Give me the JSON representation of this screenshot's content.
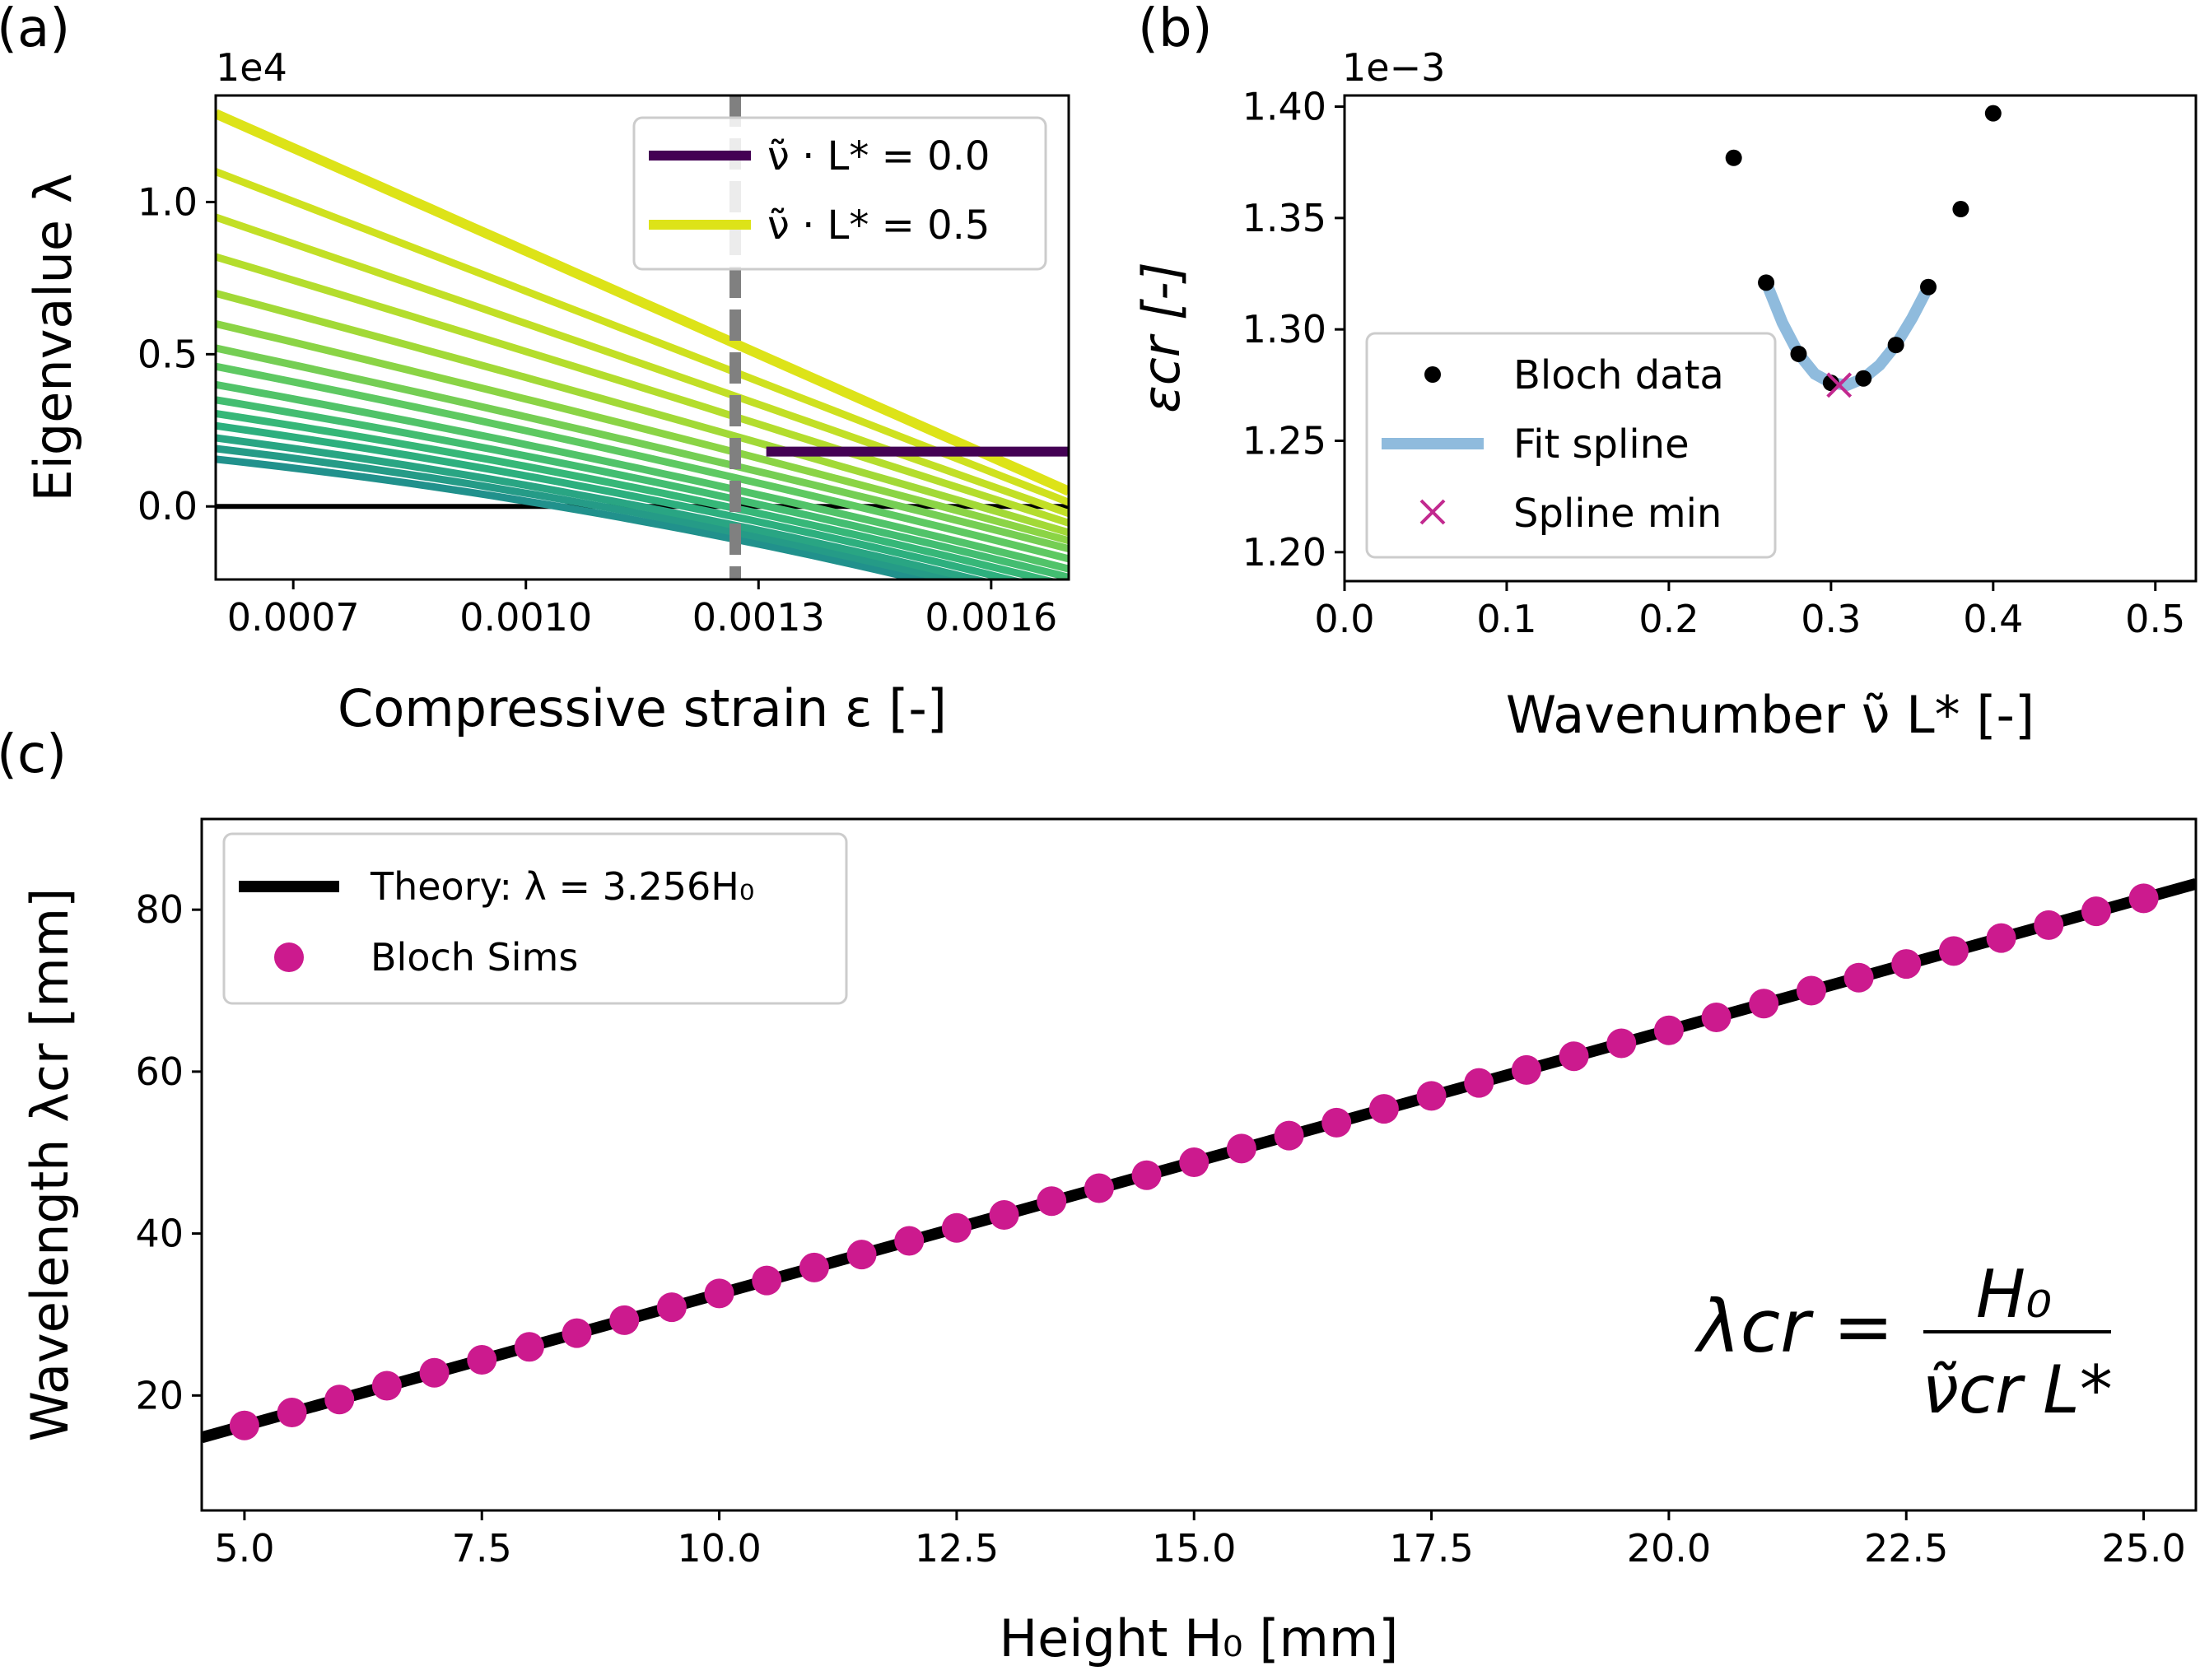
{
  "panels": {
    "a": {
      "letter": "(a)",
      "offset_text": "1e4",
      "xlabel": "Compressive strain ε [-]",
      "ylabel": "Eigenvalue λ",
      "xticks": [
        "0.0007",
        "0.0010",
        "0.0013",
        "0.0016"
      ],
      "yticks": [
        "0.0",
        "0.5",
        "1.0"
      ],
      "legend": [
        "ν̃ · L* = 0.0",
        "ν̃ · L* = 0.5"
      ]
    },
    "b": {
      "letter": "(b)",
      "offset_text": "1e−3",
      "xlabel": "Wavenumber ν̃ L* [-]",
      "ylabel": "εcr [-]",
      "xticks": [
        "0.0",
        "0.1",
        "0.2",
        "0.3",
        "0.4",
        "0.5"
      ],
      "yticks": [
        "1.20",
        "1.25",
        "1.30",
        "1.35",
        "1.40"
      ],
      "legend": [
        "Bloch data",
        "Fit spline",
        "Spline min"
      ]
    },
    "c": {
      "letter": "(c)",
      "xlabel": "Height H₀ [mm]",
      "ylabel": "Wavelength λcr [mm]",
      "xticks": [
        "5.0",
        "7.5",
        "10.0",
        "12.5",
        "15.0",
        "17.5",
        "20.0",
        "22.5",
        "25.0"
      ],
      "yticks": [
        "20",
        "40",
        "60",
        "80"
      ],
      "legend": [
        "Theory: λ = 3.256H₀",
        "Bloch Sims"
      ],
      "formula": {
        "lhs": "λcr =",
        "numerator": "H₀",
        "denominator": "ν̃cr L*"
      }
    }
  },
  "colors": {
    "dark_line": "#440154",
    "light_line": "#dde318",
    "dashed_line": "#808080",
    "spline": "#8fbbdd",
    "marker_pink": "#cc1a8e",
    "spline_min": "#c2298f",
    "black": "#000000"
  },
  "chart_data": [
    {
      "type": "line",
      "panel": "a",
      "xlabel": "Compressive strain ε [-]",
      "ylabel": "Eigenvalue λ",
      "y_scale_factor": 10000,
      "xlim": [
        0.0006,
        0.0017
      ],
      "ylim": [
        -0.24,
        1.35
      ],
      "vline_x": 0.00127,
      "hline_y": 0.0,
      "dark_series": {
        "name": "ν̃ · L* = 0.0",
        "x": [
          0.0006,
          0.0017
        ],
        "y": [
          0.18,
          0.18
        ]
      },
      "family": {
        "start": [
          0.155,
          0.19,
          0.225,
          0.265,
          0.305,
          0.35,
          0.4,
          0.46,
          0.52,
          0.6,
          0.7,
          0.82,
          0.95,
          1.1,
          1.29
        ],
        "end": [
          -0.22,
          -0.21,
          -0.2,
          -0.185,
          -0.17,
          -0.155,
          -0.14,
          -0.12,
          -0.1,
          -0.08,
          -0.06,
          -0.035,
          -0.01,
          0.02,
          0.05
        ],
        "curvature": [
          0.11,
          0.1,
          0.09,
          0.08,
          0.07,
          0.06,
          0.05,
          0.04,
          0.03,
          0.025,
          0.02,
          0.015,
          0.01,
          0.005,
          0.0
        ]
      },
      "legend_position": "top-right"
    },
    {
      "type": "scatter",
      "panel": "b",
      "xlabel": "Wavenumber ν̃ L* [-]",
      "ylabel": "εcr [-]",
      "y_scale_factor": 0.001,
      "xlim": [
        0.0,
        0.525
      ],
      "ylim": [
        1.187,
        1.405
      ],
      "series": [
        {
          "name": "Bloch data",
          "x": [
            0.24,
            0.26,
            0.28,
            0.3,
            0.32,
            0.34,
            0.36,
            0.38,
            0.4
          ],
          "y": [
            1.377,
            1.321,
            1.289,
            1.276,
            1.278,
            1.293,
            1.319,
            1.354,
            1.397
          ]
        },
        {
          "name": "Fit spline",
          "x": [
            0.26,
            0.27,
            0.28,
            0.29,
            0.3,
            0.31,
            0.32,
            0.33,
            0.34,
            0.35,
            0.36
          ],
          "y": [
            1.321,
            1.303,
            1.289,
            1.28,
            1.276,
            1.275,
            1.278,
            1.284,
            1.293,
            1.305,
            1.319
          ]
        },
        {
          "name": "Spline min",
          "x": [
            0.305
          ],
          "y": [
            1.275
          ]
        }
      ],
      "legend_position": "lower-left"
    },
    {
      "type": "scatter",
      "panel": "c",
      "xlabel": "Height H₀ [mm]",
      "ylabel": "Wavelength λcr [mm]",
      "xlim": [
        4.55,
        25.55
      ],
      "ylim": [
        5.8,
        91.2
      ],
      "theory": {
        "name": "Theory: λ = 3.256H₀",
        "slope": 3.256
      },
      "series": [
        {
          "name": "Bloch Sims",
          "x": [
            5.0,
            5.5,
            6.0,
            6.5,
            7.0,
            7.5,
            8.0,
            8.5,
            9.0,
            9.5,
            10.0,
            10.5,
            11.0,
            11.5,
            12.0,
            12.5,
            13.0,
            13.5,
            14.0,
            14.5,
            15.0,
            15.5,
            16.0,
            16.5,
            17.0,
            17.5,
            18.0,
            18.5,
            19.0,
            19.5,
            20.0,
            20.5,
            21.0,
            21.5,
            22.0,
            22.5,
            23.0,
            23.5,
            24.0,
            24.5,
            25.0
          ],
          "y": [
            16.3,
            17.9,
            19.5,
            21.2,
            22.8,
            24.4,
            26.0,
            27.7,
            29.3,
            30.9,
            32.6,
            34.2,
            35.8,
            37.4,
            39.1,
            40.7,
            42.3,
            44.0,
            45.6,
            47.2,
            48.8,
            50.5,
            52.1,
            53.7,
            55.4,
            57.0,
            58.6,
            60.2,
            61.9,
            63.5,
            65.1,
            66.7,
            68.4,
            70.0,
            71.6,
            73.3,
            74.9,
            76.5,
            78.1,
            79.8,
            81.4
          ]
        }
      ],
      "legend_position": "top-left"
    }
  ]
}
